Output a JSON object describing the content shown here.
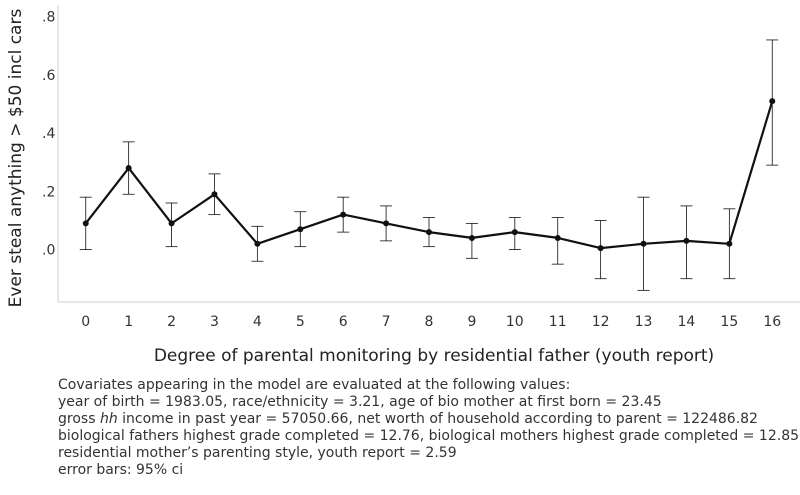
{
  "chart_data": {
    "type": "line",
    "xlabel": "Degree of parental monitoring by residential father (youth report)",
    "ylabel": "Ever steal anything > $50 incl cars",
    "x": [
      0,
      1,
      2,
      3,
      4,
      5,
      6,
      7,
      8,
      9,
      10,
      11,
      12,
      13,
      14,
      15,
      16
    ],
    "xtick_labels": [
      "0",
      "1",
      "2",
      "3",
      "4",
      "5",
      "6",
      "7",
      "8",
      "9",
      "10",
      "11",
      "12",
      "13",
      "14",
      "15",
      "16"
    ],
    "yticks": [
      0,
      0.2,
      0.4,
      0.6,
      0.8
    ],
    "ytick_labels": [
      ".0",
      ".2",
      ".4",
      ".6",
      ".8"
    ],
    "ylim": [
      -0.18,
      0.84
    ],
    "xlim": [
      -0.6,
      16.6
    ],
    "series": [
      {
        "values": [
          0.09,
          0.28,
          0.09,
          0.19,
          0.02,
          0.07,
          0.12,
          0.09,
          0.06,
          0.04,
          0.06,
          0.04,
          0.005,
          0.02,
          0.03,
          0.02,
          0.51
        ],
        "ci_low": [
          0.0,
          0.19,
          0.01,
          0.12,
          -0.04,
          0.01,
          0.06,
          0.03,
          0.01,
          -0.03,
          0.0,
          -0.05,
          -0.1,
          -0.14,
          -0.1,
          -0.1,
          0.29
        ],
        "ci_high": [
          0.18,
          0.37,
          0.16,
          0.26,
          0.08,
          0.13,
          0.18,
          0.15,
          0.11,
          0.09,
          0.11,
          0.11,
          0.1,
          0.18,
          0.15,
          0.14,
          0.72
        ],
        "color": "#111111"
      }
    ],
    "grid": false,
    "error_bars": "95% ci"
  },
  "notes": {
    "line1": "Covariates appearing in the model are evaluated at the following values:",
    "line2": "year of birth = 1983.05, race/ethnicity = 3.21, age of bio mother at first born = 23.45",
    "line3_pre": "gross ",
    "line3_em": "hh",
    "line3_post": " income in past year = 57050.66, net worth of household according to parent = 122486.82",
    "line4": "biological fathers highest grade completed = 12.76, biological mothers highest grade completed = 12.85",
    "line5": "residential mother’s parenting style, youth report = 2.59",
    "line6": "error bars: 95% ci"
  }
}
